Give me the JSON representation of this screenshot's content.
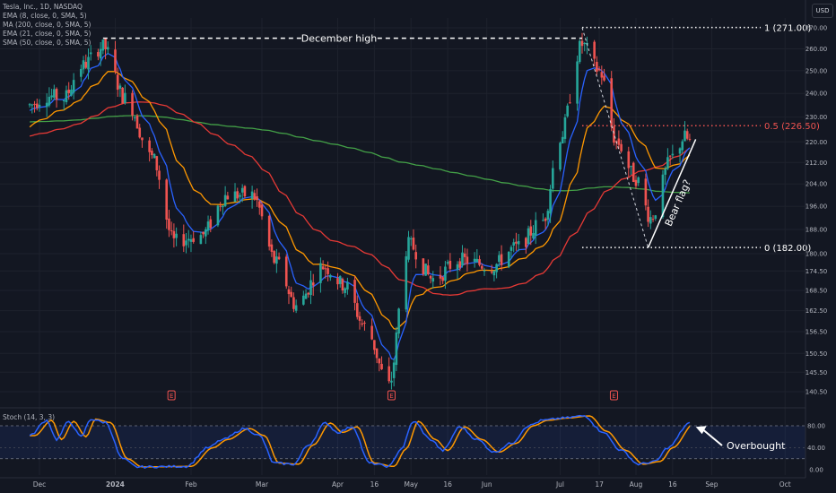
{
  "chart_data": {
    "type": "candlestick",
    "symbol_line": "Tesla, Inc., 1D, NASDAQ",
    "currency": "USD",
    "indicators": [
      {
        "label": "EMA (8, close, 0, SMA, 5)",
        "color": "#2962ff"
      },
      {
        "label": "MA (200, close, 0, SMA, 5)",
        "color": "#43a047"
      },
      {
        "label": "EMA (21, close, 0, SMA, 5)",
        "color": "#ff9800"
      },
      {
        "label": "SMA (50, close, 0, SMA, 5)",
        "color": "#e53935"
      }
    ],
    "y_ticks": [
      "270.00",
      "260.00",
      "250.00",
      "240.00",
      "230.00",
      "220.00",
      "212.00",
      "204.00",
      "196.00",
      "188.00",
      "180.00",
      "174.50",
      "168.50",
      "162.50",
      "156.50",
      "150.50",
      "145.50",
      "140.50"
    ],
    "x_ticks": [
      "Dec",
      "2024",
      "Feb",
      "Mar",
      "Apr",
      "16",
      "May",
      "16",
      "Jun",
      "Jul",
      "17",
      "Aug",
      "16",
      "Sep",
      "Oct"
    ],
    "annotations": {
      "december_high": "December high",
      "fib_1": "1 (271.00)",
      "fib_05": "0.5 (226.50)",
      "fib_0": "0 (182.00)",
      "bear_flag": "Bear flag?",
      "overbought": "Overbought",
      "earnings_marker": "E"
    },
    "fib_levels": [
      271.0,
      226.5,
      182.0
    ],
    "price_anchors": [
      {
        "x": "Nov 27",
        "p": 235
      },
      {
        "x": "Dec 4",
        "p": 239
      },
      {
        "x": "Dec 11",
        "p": 238
      },
      {
        "x": "Dec 18",
        "p": 252
      },
      {
        "x": "Dec 27",
        "p": 261
      },
      {
        "x": "Jan 5",
        "p": 238
      },
      {
        "x": "Jan 16",
        "p": 214
      },
      {
        "x": "Jan 25",
        "p": 184
      },
      {
        "x": "Feb 5",
        "p": 186
      },
      {
        "x": "Feb 16",
        "p": 200
      },
      {
        "x": "Feb 26",
        "p": 200
      },
      {
        "x": "Mar 7",
        "p": 177
      },
      {
        "x": "Mar 15",
        "p": 164
      },
      {
        "x": "Mar 26",
        "p": 176
      },
      {
        "x": "Apr 4",
        "p": 170
      },
      {
        "x": "Apr 12",
        "p": 158
      },
      {
        "x": "Apr 22",
        "p": 142
      },
      {
        "x": "Apr 30",
        "p": 183
      },
      {
        "x": "May 10",
        "p": 172
      },
      {
        "x": "May 21",
        "p": 178
      },
      {
        "x": "Jun 3",
        "p": 176
      },
      {
        "x": "Jun 13",
        "p": 182
      },
      {
        "x": "Jun 24",
        "p": 191
      },
      {
        "x": "Jul 1",
        "p": 222
      },
      {
        "x": "Jul 10",
        "p": 262
      },
      {
        "x": "Jul 17",
        "p": 250
      },
      {
        "x": "Jul 24",
        "p": 220
      },
      {
        "x": "Aug 1",
        "p": 206
      },
      {
        "x": "Aug 7",
        "p": 192
      },
      {
        "x": "Aug 16",
        "p": 214
      },
      {
        "x": "Aug 21",
        "p": 222
      },
      {
        "x": "Aug 23",
        "p": 220
      }
    ],
    "stoch": {
      "label": "Stoch (14, 3, 3)",
      "ticks": [
        "80.00",
        "40.00",
        "0.00"
      ],
      "upper": 80,
      "lower": 20,
      "k_color": "#2962ff",
      "d_color": "#ff9800",
      "anchors": [
        {
          "x": "Nov 27",
          "v": 62
        },
        {
          "x": "Dec 4",
          "v": 90
        },
        {
          "x": "Dec 8",
          "v": 55
        },
        {
          "x": "Dec 13",
          "v": 88
        },
        {
          "x": "Dec 18",
          "v": 60
        },
        {
          "x": "Dec 22",
          "v": 92
        },
        {
          "x": "Dec 28",
          "v": 86
        },
        {
          "x": "Jan 4",
          "v": 20
        },
        {
          "x": "Jan 10",
          "v": 5
        },
        {
          "x": "Jan 30",
          "v": 6
        },
        {
          "x": "Feb 8",
          "v": 40
        },
        {
          "x": "Feb 14",
          "v": 55
        },
        {
          "x": "Feb 23",
          "v": 75
        },
        {
          "x": "Feb 29",
          "v": 62
        },
        {
          "x": "Mar 6",
          "v": 12
        },
        {
          "x": "Mar 14",
          "v": 10
        },
        {
          "x": "Mar 20",
          "v": 45
        },
        {
          "x": "Mar 27",
          "v": 85
        },
        {
          "x": "Apr 1",
          "v": 68
        },
        {
          "x": "Apr 7",
          "v": 78
        },
        {
          "x": "Apr 14",
          "v": 12
        },
        {
          "x": "Apr 22",
          "v": 6
        },
        {
          "x": "Apr 27",
          "v": 38
        },
        {
          "x": "May 2",
          "v": 88
        },
        {
          "x": "May 9",
          "v": 55
        },
        {
          "x": "May 14",
          "v": 35
        },
        {
          "x": "May 21",
          "v": 78
        },
        {
          "x": "May 28",
          "v": 55
        },
        {
          "x": "Jun 4",
          "v": 32
        },
        {
          "x": "Jun 11",
          "v": 48
        },
        {
          "x": "Jun 18",
          "v": 80
        },
        {
          "x": "Jun 24",
          "v": 90
        },
        {
          "x": "Jul 2",
          "v": 94
        },
        {
          "x": "Jul 11",
          "v": 98
        },
        {
          "x": "Jul 18",
          "v": 70
        },
        {
          "x": "Jul 26",
          "v": 35
        },
        {
          "x": "Aug 2",
          "v": 10
        },
        {
          "x": "Aug 9",
          "v": 15
        },
        {
          "x": "Aug 14",
          "v": 40
        },
        {
          "x": "Aug 23",
          "v": 85
        }
      ]
    }
  }
}
